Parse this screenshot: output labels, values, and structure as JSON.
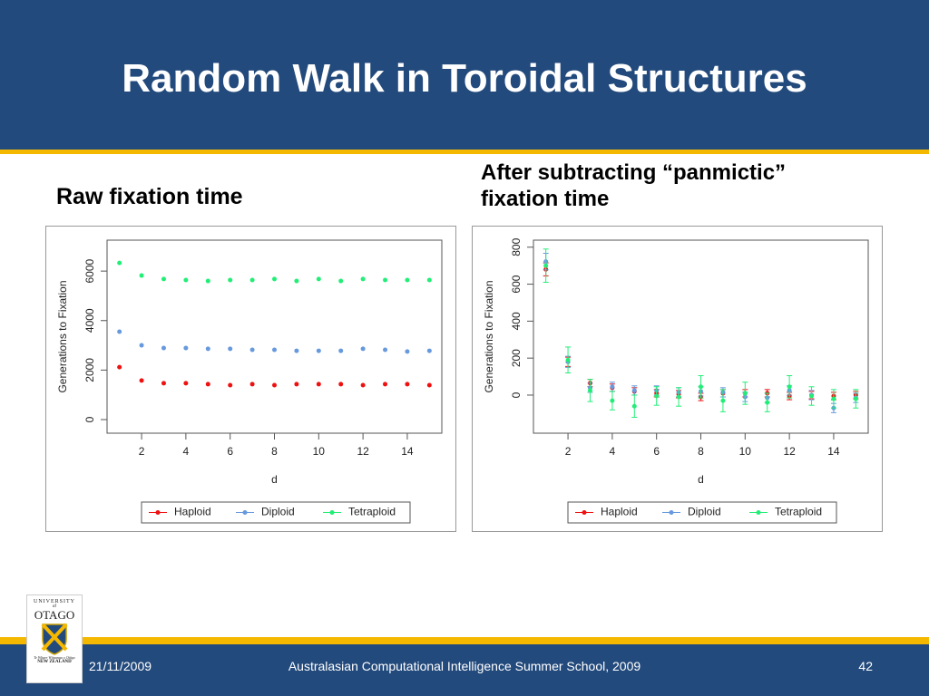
{
  "slide": {
    "title": "Random Walk in Toroidal Structures",
    "left_heading": "Raw fixation time",
    "right_heading": "After subtracting “panmictic” fixation time",
    "footer_date": "21/11/2009",
    "footer_text": "Australasian Computational Intelligence Summer School, 2009",
    "page_number": "42",
    "logo": {
      "line1": "UNIVERSITY",
      "line2": "of",
      "line3": "OTAGO",
      "motto": "Te Whare Wānanga o Otāgo",
      "line4": "NEW ZEALAND"
    }
  },
  "chart_data": [
    {
      "type": "scatter",
      "xlabel": "d",
      "ylabel": "Generations to Fixation",
      "x": [
        1,
        2,
        3,
        4,
        5,
        6,
        7,
        8,
        9,
        10,
        11,
        12,
        13,
        14,
        15
      ],
      "xlim": [
        0.44,
        15.56
      ],
      "xticks": [
        2,
        4,
        6,
        8,
        10,
        12,
        14
      ],
      "ylim": [
        -550,
        7250
      ],
      "yticks": [
        0,
        2000,
        4000,
        6000
      ],
      "legend": "bottom",
      "series": [
        {
          "name": "Haploid",
          "color": "#ee1111",
          "values": [
            2120,
            1580,
            1470,
            1470,
            1430,
            1390,
            1430,
            1390,
            1430,
            1430,
            1430,
            1390,
            1430,
            1430,
            1390
          ]
        },
        {
          "name": "Diploid",
          "color": "#6699dd",
          "values": [
            3550,
            3000,
            2890,
            2890,
            2860,
            2860,
            2820,
            2820,
            2780,
            2780,
            2780,
            2860,
            2820,
            2750,
            2780
          ]
        },
        {
          "name": "Tetraploid",
          "color": "#22ee77",
          "values": [
            6330,
            5820,
            5680,
            5640,
            5600,
            5640,
            5640,
            5680,
            5600,
            5680,
            5600,
            5680,
            5640,
            5640,
            5640
          ]
        }
      ]
    },
    {
      "type": "scatter",
      "xlabel": "d",
      "ylabel": "Generations to Fixation",
      "x": [
        1,
        2,
        3,
        4,
        5,
        6,
        7,
        8,
        9,
        10,
        11,
        12,
        13,
        14,
        15
      ],
      "xlim": [
        0.44,
        15.56
      ],
      "xticks": [
        2,
        4,
        6,
        8,
        10,
        12,
        14
      ],
      "ylim": [
        -206,
        838
      ],
      "yticks": [
        0,
        200,
        400,
        600,
        800
      ],
      "legend": "bottom",
      "series": [
        {
          "name": "Haploid",
          "color": "#ee1111",
          "values": [
            680,
            180,
            65,
            40,
            20,
            10,
            5,
            -10,
            10,
            10,
            10,
            -5,
            0,
            -5,
            0
          ],
          "errors": [
            35,
            25,
            20,
            20,
            20,
            20,
            20,
            20,
            20,
            20,
            20,
            20,
            20,
            20,
            20
          ]
        },
        {
          "name": "Diploid",
          "color": "#6699dd",
          "values": [
            722,
            180,
            40,
            45,
            25,
            25,
            15,
            20,
            15,
            -10,
            -15,
            25,
            0,
            -70,
            -15
          ],
          "errors": [
            45,
            30,
            25,
            25,
            25,
            25,
            25,
            25,
            25,
            25,
            25,
            25,
            25,
            25,
            25
          ]
        },
        {
          "name": "Tetraploid",
          "color": "#22ee77",
          "values": [
            700,
            190,
            25,
            -30,
            -60,
            -5,
            -10,
            45,
            -30,
            10,
            -40,
            45,
            -5,
            -20,
            -20
          ],
          "errors": [
            90,
            70,
            60,
            50,
            60,
            50,
            50,
            60,
            60,
            60,
            50,
            60,
            50,
            50,
            50
          ]
        }
      ]
    }
  ]
}
